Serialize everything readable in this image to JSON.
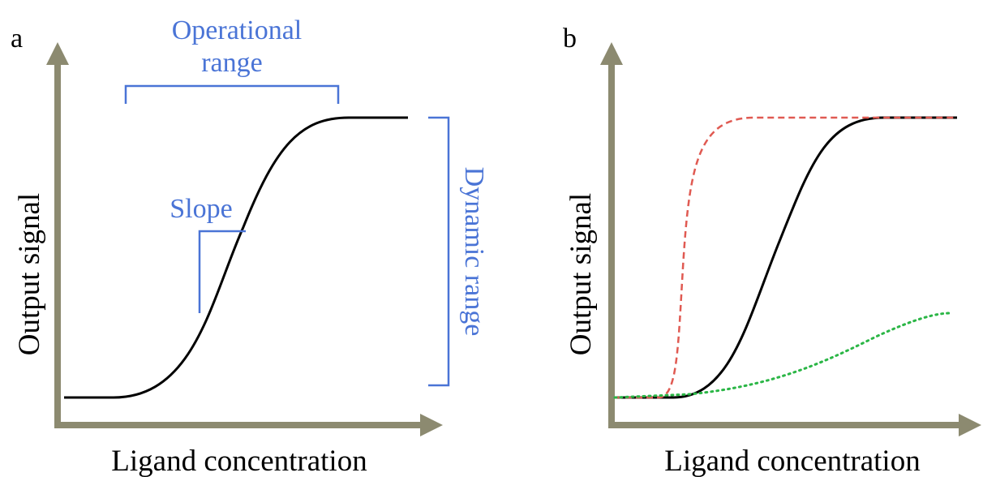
{
  "colors": {
    "axis": "#8c8a70",
    "annotation": "#4a74d6",
    "curve_main": "#000000",
    "curve_red": "#e05a52",
    "curve_green": "#2bb646"
  },
  "panel_a": {
    "letter": "a",
    "x_label": "Ligand concentration",
    "y_label": "Output signal",
    "operational_line1": "Operational",
    "operational_line2": "range",
    "slope": "Slope",
    "dynamic": "Dynamic range"
  },
  "panel_b": {
    "letter": "b",
    "x_label": "Ligand concentration",
    "y_label": "Output signal"
  }
}
